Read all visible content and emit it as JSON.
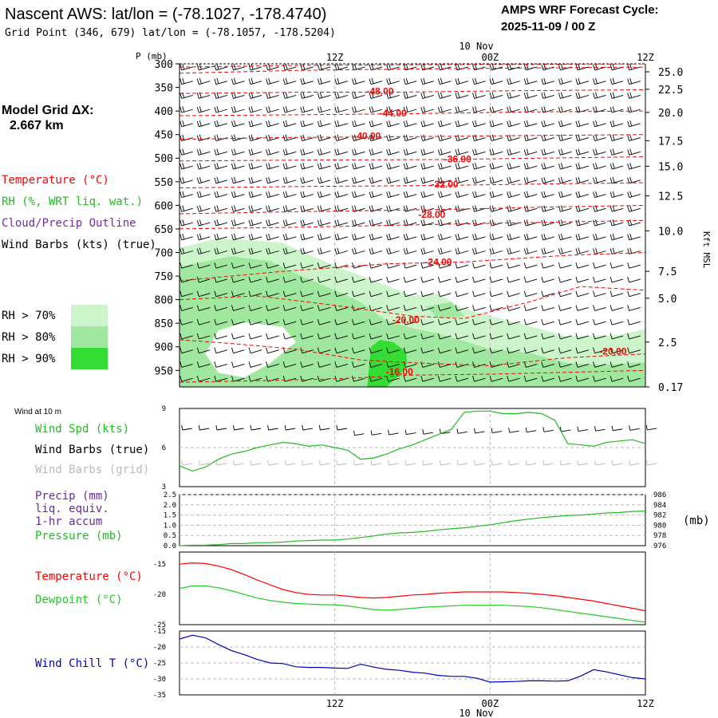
{
  "header": {
    "title": "Nascent AWS:  lat/lon = (-78.1027, -178.4740)",
    "subtitle": "Grid Point (346, 679) lat/lon = (-78.1057, -178.5204)",
    "cycle_label": "AMPS WRF Forecast Cycle:",
    "cycle_value": "2025-11-09 / 00  Z"
  },
  "sidebar": {
    "grid_label": "Model Grid ΔX:",
    "grid_value": "2.667 km",
    "legend_temperature": "Temperature (°C)",
    "legend_rh": "RH (%, WRT liq. wat.)",
    "legend_cloud": "Cloud/Precip Outline",
    "legend_wind": "Wind Barbs (kts) (true)",
    "rh_levels": [
      {
        "label": "RH > 70%",
        "color": "#ccf5cc"
      },
      {
        "label": "RH > 80%",
        "color": "#a0e8a0"
      },
      {
        "label": "RH > 90%",
        "color": "#33dd33"
      }
    ]
  },
  "colors": {
    "temperature": "#ff0000",
    "rh": "#22bb22",
    "cloud": "#7030a0",
    "wind": "#000000",
    "wind_grid": "#bbbbbb",
    "dewpoint": "#22cc22",
    "windchill": "#0000bb",
    "precip": "#6a2a9a",
    "pressure": "#22bb22"
  },
  "chart_data": [
    {
      "type": "heatmap",
      "name": "cross_section",
      "y_axis_label": "P (mb)",
      "pressure_ticks": [
        "300",
        "350",
        "400",
        "450",
        "500",
        "550",
        "600",
        "650",
        "700",
        "750",
        "800",
        "850",
        "900",
        "950"
      ],
      "height_ticks": [
        "25.0",
        "22.5",
        "20.0",
        "17.5",
        "15.0",
        "12.5",
        "10.0",
        "7.5",
        "5.0",
        "2.5",
        "0.17"
      ],
      "height_ticks_p": [
        317,
        354,
        403,
        463,
        517,
        580,
        654,
        740,
        797,
        890,
        985
      ],
      "right_axis_label": "Kft MSL",
      "time_ticks_top": [
        "12Z",
        "00Z",
        "12Z"
      ],
      "date_label": "10 Nov",
      "time_hours": [
        12,
        24,
        36
      ],
      "xlim": [
        0,
        36
      ],
      "ylim": [
        985,
        300
      ],
      "isotherm_labels": [
        {
          "text": "-48.00",
          "t": 15.5,
          "p": 358
        },
        {
          "text": "-44.00",
          "t": 16.5,
          "p": 405
        },
        {
          "text": "-40.00",
          "t": 14.5,
          "p": 453
        },
        {
          "text": "-36.00",
          "t": 21.5,
          "p": 502
        },
        {
          "text": "-32.00",
          "t": 20.5,
          "p": 555
        },
        {
          "text": "-28.00",
          "t": 19.5,
          "p": 620
        },
        {
          "text": "-24.00",
          "t": 20.0,
          "p": 720
        },
        {
          "text": "-20.00",
          "t": 17.5,
          "p": 843
        },
        {
          "text": "-20.00",
          "t": 33.5,
          "p": 910
        },
        {
          "text": "-16.00",
          "t": 17.0,
          "p": 953
        }
      ],
      "isotherms": [
        [
          [
            0,
            307
          ],
          [
            10,
            303
          ],
          [
            18,
            302
          ],
          [
            27,
            301
          ],
          [
            36,
            300
          ]
        ],
        [
          [
            0,
            320
          ],
          [
            9,
            314
          ],
          [
            18,
            311
          ],
          [
            27,
            309
          ],
          [
            36,
            307
          ]
        ],
        [
          [
            0,
            363
          ],
          [
            10,
            360
          ],
          [
            17,
            360
          ],
          [
            26,
            357
          ],
          [
            36,
            355
          ]
        ],
        [
          [
            0,
            410
          ],
          [
            9,
            408
          ],
          [
            17,
            406
          ],
          [
            27,
            402
          ],
          [
            36,
            400
          ]
        ],
        [
          [
            0,
            460
          ],
          [
            9,
            456
          ],
          [
            16,
            455
          ],
          [
            27,
            452
          ],
          [
            36,
            450
          ]
        ],
        [
          [
            0,
            506
          ],
          [
            10,
            504
          ],
          [
            20,
            503
          ],
          [
            28,
            500
          ],
          [
            36,
            497
          ]
        ],
        [
          [
            0,
            563
          ],
          [
            10,
            560
          ],
          [
            20,
            558
          ],
          [
            30,
            554
          ],
          [
            36,
            552
          ]
        ],
        [
          [
            0,
            618
          ],
          [
            10,
            613
          ],
          [
            20,
            609
          ],
          [
            28,
            604
          ],
          [
            36,
            600
          ]
        ],
        [
          [
            0,
            650
          ],
          [
            10,
            646
          ],
          [
            19,
            641
          ],
          [
            28,
            636
          ],
          [
            36,
            632
          ]
        ],
        [
          [
            0,
            760
          ],
          [
            8,
            740
          ],
          [
            16,
            724
          ],
          [
            22,
            720
          ],
          [
            30,
            706
          ],
          [
            36,
            700
          ]
        ],
        [
          [
            0,
            800
          ],
          [
            6,
            792
          ],
          [
            12,
            812
          ],
          [
            18,
            835
          ],
          [
            22,
            840
          ],
          [
            27,
            805
          ],
          [
            31,
            772
          ],
          [
            36,
            780
          ]
        ],
        [
          [
            0,
            885
          ],
          [
            4,
            893
          ],
          [
            9,
            905
          ],
          [
            14,
            928
          ],
          [
            19,
            935
          ],
          [
            24,
            940
          ],
          [
            30,
            923
          ],
          [
            36,
            915
          ]
        ],
        [
          [
            0,
            975
          ],
          [
            6,
            972
          ],
          [
            12,
            968
          ],
          [
            18,
            960
          ],
          [
            24,
            958
          ],
          [
            30,
            954
          ],
          [
            36,
            950
          ]
        ]
      ],
      "rh_regions": [
        {
          "level": 70,
          "points": [
            [
              0,
              690
            ],
            [
              3,
              670
            ],
            [
              6,
              675
            ],
            [
              8,
              680
            ],
            [
              12,
              728
            ],
            [
              16,
              770
            ],
            [
              18,
              792
            ],
            [
              20,
              788
            ],
            [
              22,
              820
            ],
            [
              26,
              848
            ],
            [
              30,
              878
            ],
            [
              34,
              875
            ],
            [
              36,
              862
            ],
            [
              36,
              985
            ],
            [
              0,
              985
            ]
          ]
        },
        {
          "level": 80,
          "points": [
            [
              0,
              730
            ],
            [
              4,
              708
            ],
            [
              7,
              718
            ],
            [
              9,
              745
            ],
            [
              12,
              780
            ],
            [
              14,
              805
            ],
            [
              16,
              845
            ],
            [
              18,
              860
            ],
            [
              20,
              872
            ],
            [
              22,
              888
            ],
            [
              24,
              905
            ],
            [
              27,
              913
            ],
            [
              30,
              935
            ],
            [
              33,
              938
            ],
            [
              36,
              932
            ],
            [
              36,
              985
            ],
            [
              0,
              985
            ]
          ]
        },
        {
          "level": 80,
          "points": [
            [
              19,
              815
            ],
            [
              21,
              805
            ],
            [
              22,
              835
            ],
            [
              20,
              840
            ]
          ]
        },
        {
          "level": 90,
          "points": [
            [
              14.5,
              985
            ],
            [
              14.8,
              900
            ],
            [
              15.5,
              885
            ],
            [
              16.5,
              890
            ],
            [
              17.5,
              910
            ],
            [
              17.6,
              935
            ],
            [
              17,
              960
            ],
            [
              16.2,
              980
            ],
            [
              16,
              985
            ]
          ]
        }
      ],
      "rh_holes": [
        {
          "points": [
            [
              3,
              865
            ],
            [
              5,
              848
            ],
            [
              8,
              858
            ],
            [
              9,
              890
            ],
            [
              7,
              935
            ],
            [
              5,
              965
            ],
            [
              3,
              955
            ],
            [
              2,
              915
            ]
          ]
        }
      ],
      "wind_levels_mb": [
        310,
        340,
        370,
        400,
        430,
        460,
        490,
        520,
        550,
        580,
        610,
        640,
        670,
        700,
        730,
        760,
        790,
        820,
        850,
        880,
        910,
        940,
        970
      ]
    },
    {
      "type": "line",
      "name": "wind_10m",
      "title": "Wind at 10 m",
      "series_label": "Wind Spd (kts)",
      "barbs_true_label": "Wind Barbs (true)",
      "barbs_grid_label": "Wind Barbs (grid)",
      "ylim": [
        3,
        9
      ],
      "y_ticks": [
        "3",
        "6",
        "9"
      ],
      "x": [
        0,
        1,
        2,
        3,
        4,
        5,
        6,
        7,
        8,
        9,
        10,
        11,
        12,
        13,
        14,
        15,
        16,
        17,
        18,
        19,
        20,
        21,
        22,
        23,
        24,
        25,
        26,
        27,
        28,
        29,
        30,
        31,
        32,
        33,
        34,
        35,
        36
      ],
      "values": [
        4.6,
        4.2,
        4.5,
        5.1,
        5.5,
        5.7,
        6.0,
        6.2,
        6.4,
        6.3,
        6.1,
        6.2,
        6.0,
        5.8,
        5.1,
        5.2,
        5.5,
        5.9,
        6.2,
        6.6,
        7.0,
        7.4,
        8.7,
        8.8,
        8.8,
        8.6,
        8.6,
        8.7,
        8.6,
        8.1,
        6.3,
        6.2,
        6.1,
        6.4,
        6.5,
        6.6,
        6.3
      ]
    },
    {
      "type": "line",
      "name": "precip_pressure",
      "precip_label": [
        "Precip (mm)",
        "liq. equiv.",
        "1-hr accum"
      ],
      "pressure_label": "Pressure (mb)",
      "pressure_unit": "(mb)",
      "precip_ticks": [
        "0.0",
        "0.5",
        "1.0",
        "1.5",
        "2.0",
        "2.5"
      ],
      "pressure_ticks": [
        "976",
        "978",
        "980",
        "982",
        "984",
        "986"
      ],
      "ylim_precip": [
        0,
        2.5
      ],
      "ylim_pressure": [
        976,
        986
      ],
      "x": [
        0,
        1,
        2,
        3,
        4,
        5,
        6,
        7,
        8,
        9,
        10,
        11,
        12,
        13,
        14,
        15,
        16,
        17,
        18,
        19,
        20,
        21,
        22,
        23,
        24,
        25,
        26,
        27,
        28,
        29,
        30,
        31,
        32,
        33,
        34,
        35,
        36
      ],
      "pressure": [
        976.0,
        976.1,
        976.1,
        976.2,
        976.4,
        976.4,
        976.6,
        976.6,
        976.7,
        976.9,
        977.0,
        977.1,
        977.1,
        977.3,
        977.6,
        977.9,
        978.3,
        978.5,
        978.6,
        978.8,
        979.1,
        979.3,
        979.5,
        979.8,
        980.1,
        980.5,
        980.9,
        981.2,
        981.5,
        981.7,
        981.9,
        982.0,
        982.2,
        982.4,
        982.5,
        982.7,
        982.8
      ]
    },
    {
      "type": "line",
      "name": "temperature_dewpoint",
      "series": [
        {
          "name": "Temperature (°C)",
          "values": [
            -15.0,
            -14.8,
            -14.9,
            -15.3,
            -15.9,
            -16.7,
            -17.6,
            -18.4,
            -19.2,
            -19.7,
            -20.0,
            -20.1,
            -20.1,
            -20.3,
            -20.5,
            -20.6,
            -20.5,
            -20.3,
            -20.1,
            -20.0,
            -19.8,
            -19.7,
            -19.6,
            -19.6,
            -19.6,
            -19.6,
            -19.7,
            -19.8,
            -20.0,
            -20.2,
            -20.5,
            -20.8,
            -21.1,
            -21.5,
            -21.9,
            -22.3,
            -22.7
          ]
        },
        {
          "name": "Dewpoint (°C)",
          "values": [
            -19.0,
            -18.6,
            -18.6,
            -18.9,
            -19.4,
            -20.0,
            -20.6,
            -21.0,
            -21.3,
            -21.5,
            -21.6,
            -21.7,
            -21.7,
            -21.9,
            -22.2,
            -22.5,
            -22.6,
            -22.5,
            -22.3,
            -22.1,
            -22.0,
            -21.9,
            -21.8,
            -21.8,
            -21.8,
            -21.8,
            -21.9,
            -22.0,
            -22.2,
            -22.5,
            -22.8,
            -23.1,
            -23.4,
            -23.7,
            -24.0,
            -24.3,
            -24.6
          ]
        }
      ],
      "x": [
        0,
        1,
        2,
        3,
        4,
        5,
        6,
        7,
        8,
        9,
        10,
        11,
        12,
        13,
        14,
        15,
        16,
        17,
        18,
        19,
        20,
        21,
        22,
        23,
        24,
        25,
        26,
        27,
        28,
        29,
        30,
        31,
        32,
        33,
        34,
        35,
        36
      ],
      "ylim": [
        -25,
        -13
      ],
      "y_ticks": [
        "-15",
        "-20",
        "-25"
      ]
    },
    {
      "type": "line",
      "name": "wind_chill",
      "series_label": "Wind Chill T (°C)",
      "ylim": [
        -35,
        -15
      ],
      "y_ticks": [
        "-15",
        "-20",
        "-25",
        "-30",
        "-35"
      ],
      "x": [
        0,
        1,
        2,
        3,
        4,
        5,
        6,
        7,
        8,
        9,
        10,
        11,
        12,
        13,
        14,
        15,
        16,
        17,
        18,
        19,
        20,
        21,
        22,
        23,
        24,
        25,
        26,
        27,
        28,
        29,
        30,
        31,
        32,
        33,
        34,
        35,
        36
      ],
      "values": [
        -17.5,
        -16.3,
        -17.1,
        -19.2,
        -21.1,
        -22.4,
        -23.9,
        -25.0,
        -25.2,
        -26.2,
        -26.4,
        -26.4,
        -26.6,
        -26.7,
        -25.4,
        -26.3,
        -27.0,
        -27.3,
        -27.9,
        -28.2,
        -28.9,
        -29.2,
        -29.2,
        -29.8,
        -31.0,
        -30.9,
        -30.8,
        -30.6,
        -30.6,
        -30.7,
        -30.6,
        -29.1,
        -27.1,
        -27.8,
        -28.7,
        -29.6,
        -30.0
      ]
    }
  ],
  "bottom_axis": {
    "time_ticks": [
      "12Z",
      "00Z",
      "12Z"
    ],
    "date_label": "10 Nov"
  }
}
